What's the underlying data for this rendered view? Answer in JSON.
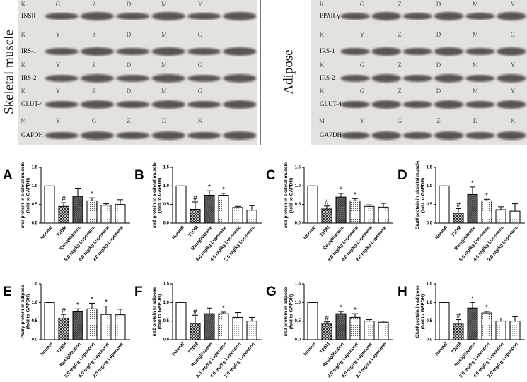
{
  "blots": [
    {
      "tissue": "Skeletal muscle",
      "rows": [
        {
          "protein": "INSR",
          "lanes": [
            "K",
            "G",
            "Z",
            "D",
            "M",
            "Y"
          ]
        },
        {
          "protein": "IRS-1",
          "lanes": [
            "K",
            "Y",
            "Z",
            "D",
            "M",
            "G"
          ]
        },
        {
          "protein": "IRS-2",
          "lanes": [
            "K",
            "Y",
            "Z",
            "D",
            "M",
            "G"
          ]
        },
        {
          "protein": "GLUT-4",
          "lanes": [
            "K",
            "Y",
            "Z",
            "D",
            "M",
            "G"
          ]
        },
        {
          "protein": "GAPDH",
          "lanes": [
            "M",
            "Y",
            "G",
            "Z",
            "D",
            "K"
          ]
        }
      ]
    },
    {
      "tissue": "Adipose",
      "rows": [
        {
          "protein": "PPAR-γ",
          "lanes": [
            "K",
            "G",
            "Z",
            "D",
            "M",
            "Y"
          ]
        },
        {
          "protein": "IRS-1",
          "lanes": [
            "K",
            "Y",
            "Z",
            "D",
            "M",
            "G"
          ]
        },
        {
          "protein": "IRS-2",
          "lanes": [
            "K",
            "G",
            "Z",
            "D",
            "M",
            "Y"
          ]
        },
        {
          "protein": "GLUT-4",
          "lanes": [
            "K",
            "G",
            "Z",
            "D",
            "M",
            "Y"
          ]
        },
        {
          "protein": "GAPDH",
          "lanes": [
            "M",
            "Y",
            "G",
            "Z",
            "D",
            "K"
          ]
        }
      ]
    }
  ],
  "chart_data": [
    {
      "type": "bar",
      "panel": "A",
      "gene": "Insr",
      "ylabel": "protein in skeletal muscle",
      "ylabel_unit": "(fold to GAPDH)",
      "categories": [
        "Normal",
        "T2DM",
        "Rosiglitazone",
        "8.0 mg/kg Lupenone",
        "4.0 mg/kg Lupenone",
        "2.0 mg/kg Lupenone"
      ],
      "values": [
        1,
        0.45,
        0.72,
        0.6,
        0.48,
        0.5
      ],
      "errors": [
        0,
        0.1,
        0.22,
        0.08,
        0.04,
        0.13
      ],
      "annotations": [
        null,
        "#",
        null,
        "*",
        null,
        null
      ],
      "ylim": [
        0,
        1.5
      ],
      "yticks": [
        {
          "value": 0,
          "label": "0.0"
        },
        0.5,
        {
          "value": 1,
          "label": "1.0"
        },
        1.5
      ]
    },
    {
      "type": "bar",
      "panel": "B",
      "gene": "Irs1",
      "ylabel": "protein in skeletal muscle",
      "ylabel_unit": "(fold to GAPDH)",
      "categories": [
        "Normal",
        "T2DM",
        "Rosiglitazone",
        "8.0 mg/kg Lupenone",
        "4.0 mg/kg Lupenone",
        "2.0 mg/kg Lupenone"
      ],
      "values": [
        1,
        0.37,
        0.75,
        0.75,
        0.42,
        0.35
      ],
      "errors": [
        0,
        0.2,
        0.12,
        0.05,
        0.03,
        0.12
      ],
      "annotations": [
        null,
        "#",
        "*",
        "*",
        null,
        null
      ],
      "ylim": [
        0,
        1.5
      ],
      "yticks": [
        {
          "value": 0,
          "label": "0.0"
        },
        0.5,
        {
          "value": 1,
          "label": "1.0"
        },
        1.5
      ]
    },
    {
      "type": "bar",
      "panel": "C",
      "gene": "Irs2",
      "ylabel": "protein in skeletal muscle",
      "ylabel_unit": "(fold to GAPDH)",
      "categories": [
        "Normal",
        "T2DM",
        "Rosiglitazone",
        "8.0 mg/kg Lupenone",
        "4.0 mg/kg Lupenone",
        "2.0 mg/kg Lupenone"
      ],
      "values": [
        1,
        0.38,
        0.7,
        0.6,
        0.45,
        0.43
      ],
      "errors": [
        0,
        0.08,
        0.1,
        0.06,
        0.04,
        0.1
      ],
      "annotations": [
        null,
        "#",
        "*",
        "*",
        null,
        null
      ],
      "ylim": [
        0,
        1.5
      ],
      "yticks": [
        {
          "value": 0,
          "label": "0.0"
        },
        0.5,
        {
          "value": 1,
          "label": "1.0"
        },
        1.5
      ]
    },
    {
      "type": "bar",
      "panel": "D",
      "gene": "Glut4",
      "ylabel": "protein in skeletal muscle",
      "ylabel_unit": "(fold to GAPDH)",
      "categories": [
        "Normal",
        "T2DM",
        "Rosiglitazone",
        "8.0 mg/kg Lupenone",
        "4.0 mg/kg Lupenone",
        "2.0 mg/kg Lupenone"
      ],
      "values": [
        1,
        0.27,
        0.77,
        0.6,
        0.36,
        0.32
      ],
      "errors": [
        0,
        0.12,
        0.2,
        0.04,
        0.08,
        0.2
      ],
      "annotations": [
        null,
        "#",
        "*",
        "*",
        null,
        null
      ],
      "ylim": [
        0,
        1.5
      ],
      "yticks": [
        {
          "value": 0,
          "label": "0.0"
        },
        0.5,
        {
          "value": 1,
          "label": "1.0"
        },
        1.5
      ]
    },
    {
      "type": "bar",
      "panel": "E",
      "gene": "Pparγ",
      "ylabel": "protein in adipose",
      "ylabel_unit": "(fold to GAPDH)",
      "categories": [
        "Normal",
        "T2DM",
        "Rosiglitazone",
        "8.0 mg/kg Lupenone",
        "4.0 mg/kg Lupenone",
        "2.0 mg/kg Lupenone"
      ],
      "values": [
        1,
        0.58,
        0.75,
        0.83,
        0.68,
        0.67
      ],
      "errors": [
        0,
        0.1,
        0.08,
        0.15,
        0.22,
        0.15
      ],
      "annotations": [
        null,
        "#",
        "*",
        "*",
        "*",
        null
      ],
      "ylim": [
        0,
        1.5
      ],
      "yticks": [
        {
          "value": 0,
          "label": "0.0"
        },
        0.5,
        {
          "value": 1,
          "label": "1.0"
        },
        1.5
      ]
    },
    {
      "type": "bar",
      "panel": "F",
      "gene": "Irs1",
      "ylabel": "protein in adipose",
      "ylabel_unit": "(fold to GAPDH)",
      "categories": [
        "Normal",
        "T2DM",
        "Rosiglitazone",
        "8.0 mg/kg Lupenone",
        "4.0 mg/kg Lupenone",
        "2.0 mg/kg Lupenone"
      ],
      "values": [
        1,
        0.44,
        0.7,
        0.7,
        0.6,
        0.5
      ],
      "errors": [
        0,
        0.22,
        0.15,
        0.04,
        0.13,
        0.1
      ],
      "annotations": [
        null,
        "#",
        null,
        "*",
        null,
        null
      ],
      "ylim": [
        0,
        1.5
      ],
      "yticks": [
        {
          "value": 0,
          "label": "0.0"
        },
        0.5,
        {
          "value": 1,
          "label": "1.0"
        },
        1.5
      ]
    },
    {
      "type": "bar",
      "panel": "G",
      "gene": "Irs2",
      "ylabel": "protein in adipose",
      "ylabel_unit": "(fold to GAPDH)",
      "categories": [
        "Normal",
        "T2DM",
        "Rosiglitazone",
        "8.0 mg/kg Lupenone",
        "4.0 mg/kg Lupenone",
        "2.0 mg/kg Lupenone"
      ],
      "values": [
        1,
        0.42,
        0.7,
        0.6,
        0.5,
        0.47
      ],
      "errors": [
        0,
        0.06,
        0.06,
        0.1,
        0.04,
        0.03
      ],
      "annotations": [
        null,
        "#",
        "*",
        "*",
        null,
        null
      ],
      "ylim": [
        0,
        1.5
      ],
      "yticks": [
        {
          "value": 0,
          "label": "0.0"
        },
        0.5,
        {
          "value": 1,
          "label": "1.0"
        },
        1.5
      ]
    },
    {
      "type": "bar",
      "panel": "H",
      "gene": "Glut4",
      "ylabel": "protein in adipose",
      "ylabel_unit": "(fold to GAPDH)",
      "categories": [
        "Normal",
        "T2DM",
        "Rosiglitazone",
        "8.0 mg/kg Lupenone",
        "4.0 mg/kg Lupenone",
        "2.0 mg/kg Lupenone"
      ],
      "values": [
        1,
        0.42,
        0.85,
        0.72,
        0.5,
        0.5
      ],
      "errors": [
        0,
        0.12,
        0.15,
        0.04,
        0.08,
        0.12
      ],
      "annotations": [
        null,
        "#",
        "*",
        "*",
        null,
        null
      ],
      "ylim": [
        0,
        1.5
      ],
      "yticks": [
        {
          "value": 0,
          "label": "0.0"
        },
        0.5,
        {
          "value": 1,
          "label": "1.0"
        },
        1.5
      ]
    }
  ]
}
